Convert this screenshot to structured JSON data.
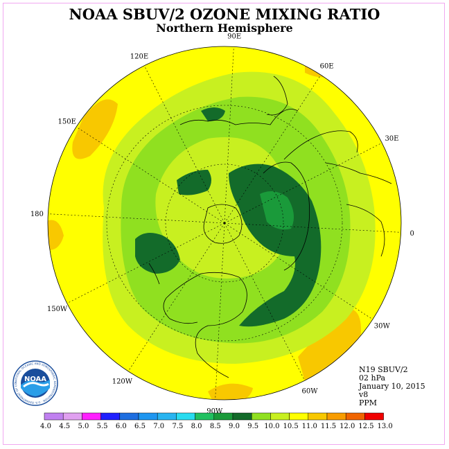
{
  "title": "NOAA SBUV/2 OZONE MIXING RATIO",
  "subtitle": "Northern Hemisphere",
  "longitude_labels": [
    "90E",
    "60E",
    "30E",
    "0",
    "30W",
    "60W",
    "90W",
    "120W",
    "150W",
    "180",
    "150E",
    "120E"
  ],
  "info": {
    "instrument": "N19 SBUV/2",
    "level": "02 hPa",
    "date": "January 10, 2015",
    "version": "v8",
    "units": "PPM"
  },
  "colorbar": {
    "labels": [
      "4.0",
      "4.5",
      "5.0",
      "5.5",
      "6.0",
      "6.5",
      "7.0",
      "7.5",
      "8.0",
      "8.5",
      "9.0",
      "9.5",
      "10.0",
      "10.5",
      "11.0",
      "11.5",
      "12.0",
      "12.5",
      "13.0"
    ],
    "colors": [
      "#c080f0",
      "#e0a0f0",
      "#ff20ff",
      "#2020ff",
      "#1e6ee0",
      "#1e96f0",
      "#28b4f0",
      "#28dcf0",
      "#20c060",
      "#1a9a3a",
      "#136b2a",
      "#90e020",
      "#c8f020",
      "#ffff00",
      "#f8c800",
      "#f89c00",
      "#f06400",
      "#f00000",
      "#8c5a3c"
    ]
  },
  "logo": {
    "text": "NOAA",
    "ring_text": "NATIONAL OCEANIC AND ATMOSPHERIC ADMINISTRATION · U.S. DEPARTMENT OF COMMERCE"
  },
  "colors": {
    "background_field": "#ffff00",
    "frame": "#f1a8f1"
  }
}
